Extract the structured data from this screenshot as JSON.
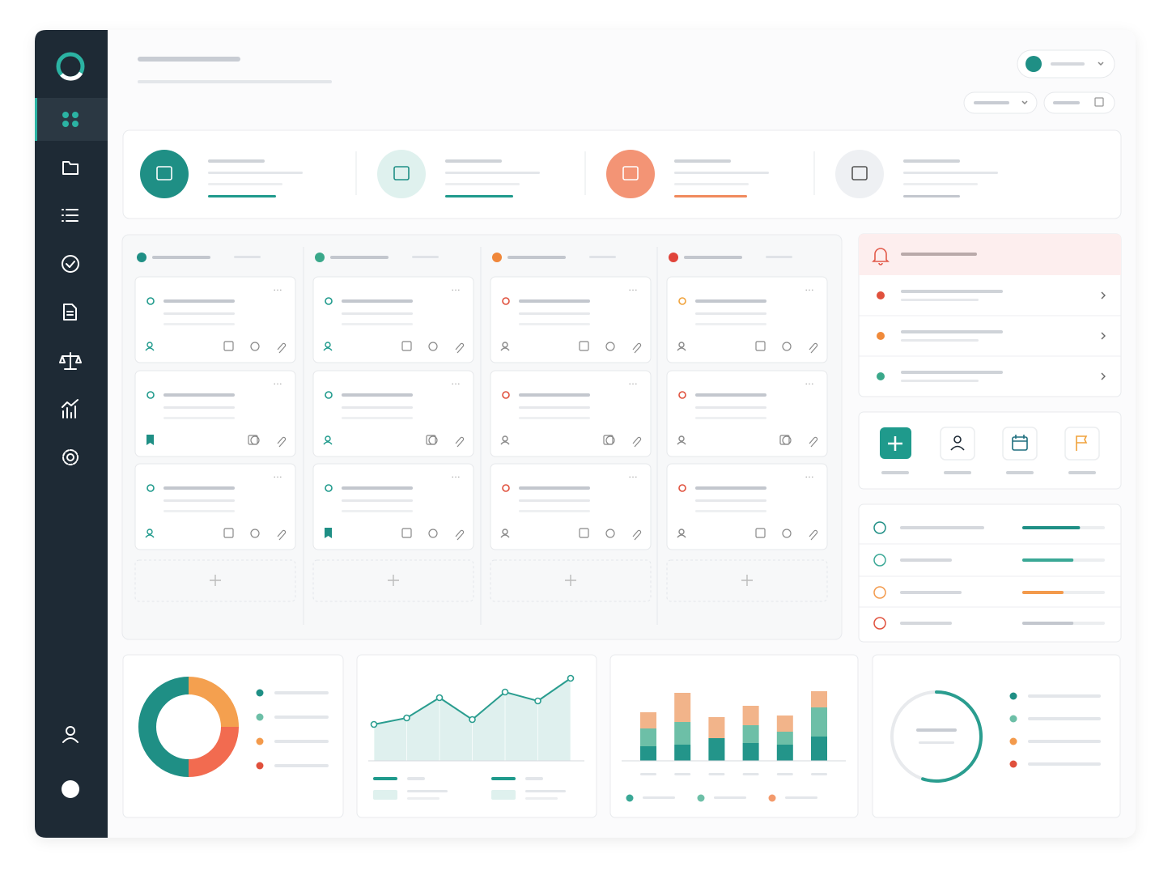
{
  "chart_data": [
    {
      "type": "pie",
      "values": [
        25,
        25,
        50
      ],
      "colors": [
        "#f4a04f",
        "#f26b50",
        "#1f8f85"
      ]
    },
    {
      "type": "line",
      "categories": [
        null,
        null,
        null,
        null,
        null,
        null,
        null
      ],
      "values": [
        45,
        53,
        78,
        51,
        85,
        74,
        102
      ],
      "color": "#2a9d8f",
      "ylim": [
        0,
        110
      ]
    },
    {
      "type": "bar",
      "stacked": true,
      "categories": [
        null,
        null,
        null,
        null,
        null,
        null
      ],
      "ylim": [
        0,
        90
      ],
      "series": [
        {
          "color": "#23958a",
          "values": [
            18,
            20,
            28,
            22,
            20,
            30
          ]
        },
        {
          "color": "#6dbfa7",
          "values": [
            22,
            28,
            0,
            22,
            16,
            36
          ]
        },
        {
          "color": "#f2b48a",
          "values": [
            20,
            36,
            26,
            24,
            20,
            20
          ]
        }
      ]
    },
    {
      "type": "gauge",
      "values": [
        55
      ],
      "color": "#2a9d8f",
      "ylim": [
        0,
        100
      ]
    }
  ],
  "panel": {
    "progress": [
      {
        "value": 70,
        "color": "#1f8f85"
      },
      {
        "value": 62,
        "color": "#3aa896"
      },
      {
        "value": 50,
        "color": "#f39a4c"
      },
      {
        "value": 62,
        "color": "#c3c7ce"
      }
    ]
  }
}
